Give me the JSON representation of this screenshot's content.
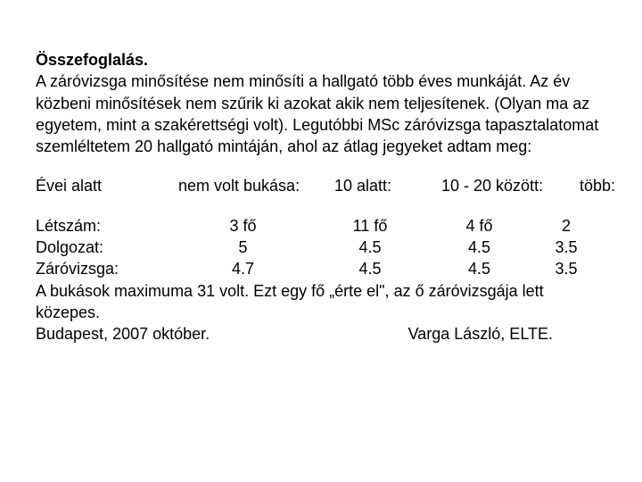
{
  "title": "Összefoglalás.",
  "para1": "A záróvizsga minősítése nem minősíti a hallgató több éves munkáját. Az év közbeni minősítések nem szűrik ki azokat akik nem teljesítenek. (Olyan ma az egyetem, mint a szakérettségi volt). Legutóbbi MSc záróvizsga tapasztalatomat szemléltetem  20 hallgató mintáján, ahol az átlag jegyeket adtam meg:",
  "hdr": {
    "c0": "Évei alatt",
    "c1": "nem volt bukása:",
    "c2": "10 alatt:",
    "c3": "10 - 20 között:",
    "c4": "több:"
  },
  "rows": {
    "r1": {
      "label": "Létszám:",
      "v1": "3 fő",
      "v2": "11 fő",
      "v3": "4 fő",
      "v4": "2"
    },
    "r2": {
      "label": "Dolgozat:",
      "v1": "5",
      "v2": "4.5",
      "v3": "4.5",
      "v4": "3.5"
    },
    "r3": {
      "label": "Záróvizsga:",
      "v1": "4.7",
      "v2": "4.5",
      "v3": "4.5",
      "v4": "3.5"
    }
  },
  "para2": "A bukások maximuma 31 volt. Ezt egy fő „érte el\", az ő záróvizsgája lett közepes.",
  "footer_left": "Budapest, 2007 október.",
  "footer_right": "Varga László, ELTE."
}
